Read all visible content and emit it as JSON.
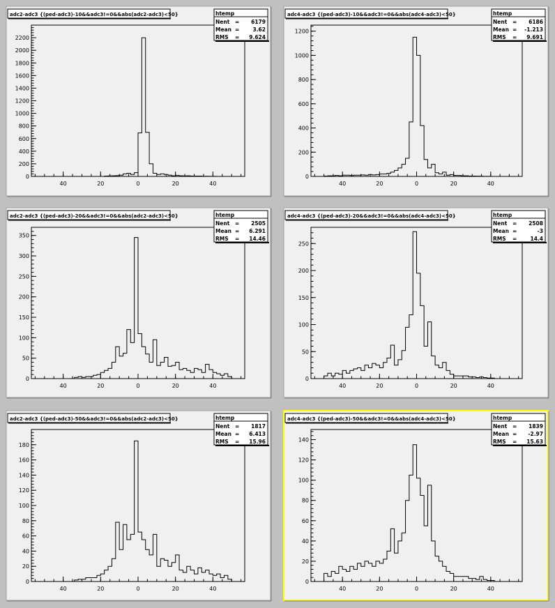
{
  "highlight_color": "#ffff00",
  "chart_data": [
    {
      "type": "histogram",
      "title": "adc2-adc3 {(ped-adc3)-10&&adc3!=0&&abs(adc2-adc3)<50}",
      "stats": {
        "header": "htemp",
        "entries_label": "Nent",
        "entries": "6179",
        "mean_label": "Mean",
        "mean": "3.62",
        "rms_label": "RMS",
        "rms": "9.624"
      },
      "xlim": [
        -57,
        57
      ],
      "ylim": [
        0,
        2400
      ],
      "xticks": [
        -40,
        -20,
        0,
        20,
        40
      ],
      "xtick_labels": [
        "40",
        "20",
        "0",
        "20",
        "40"
      ],
      "yticks": [
        0,
        200,
        400,
        600,
        800,
        1000,
        1200,
        1400,
        1600,
        1800,
        2000,
        2200
      ],
      "bin_start": -50,
      "bin_width": 2,
      "values": [
        0,
        0,
        0,
        0,
        0,
        0,
        0,
        0,
        0,
        0,
        0,
        0,
        0,
        0,
        0,
        0,
        5,
        8,
        10,
        12,
        20,
        40,
        50,
        30,
        60,
        690,
        2200,
        700,
        200,
        50,
        30,
        40,
        30,
        20,
        10,
        15,
        10,
        8,
        10,
        5,
        5,
        5,
        3,
        3,
        2,
        2,
        0,
        0,
        0,
        0
      ]
    },
    {
      "type": "histogram",
      "title": "adc4-adc3 {(ped-adc3)-10&&adc3!=0&&abs(adc4-adc3)<50}",
      "stats": {
        "header": "htemp",
        "entries_label": "Nent",
        "entries": "6186",
        "mean_label": "Mean",
        "mean": "-1.213",
        "rms_label": "RMS",
        "rms": "9.691"
      },
      "xlim": [
        -57,
        57
      ],
      "ylim": [
        0,
        1250
      ],
      "xticks": [
        -40,
        -20,
        0,
        20,
        40
      ],
      "xtick_labels": [
        "40",
        "20",
        "0",
        "20",
        "40"
      ],
      "yticks": [
        0,
        200,
        400,
        600,
        800,
        1000,
        1200
      ],
      "bin_start": -50,
      "bin_width": 2,
      "values": [
        3,
        5,
        5,
        8,
        5,
        10,
        10,
        8,
        10,
        10,
        12,
        10,
        15,
        12,
        15,
        20,
        20,
        25,
        35,
        50,
        70,
        100,
        150,
        450,
        1150,
        1000,
        420,
        140,
        70,
        100,
        30,
        20,
        35,
        10,
        15,
        8,
        8,
        5,
        5,
        3,
        3,
        2,
        2,
        1,
        1,
        0,
        0,
        0,
        0,
        0
      ]
    },
    {
      "type": "histogram",
      "title": "adc2-adc3 {(ped-adc3)-20&&adc3!=0&&abs(adc2-adc3)<50}",
      "stats": {
        "header": "htemp",
        "entries_label": "Nent",
        "entries": "2505",
        "mean_label": "Mean",
        "mean": "6.291",
        "rms_label": "RMS",
        "rms": "14.46"
      },
      "xlim": [
        -57,
        57
      ],
      "ylim": [
        0,
        370
      ],
      "xticks": [
        -40,
        -20,
        0,
        20,
        40
      ],
      "xtick_labels": [
        "40",
        "20",
        "0",
        "20",
        "40"
      ],
      "yticks": [
        0,
        50,
        100,
        150,
        200,
        250,
        300,
        350
      ],
      "bin_start": -50,
      "bin_width": 2,
      "values": [
        0,
        0,
        0,
        0,
        0,
        0,
        0,
        0,
        3,
        5,
        3,
        5,
        5,
        8,
        10,
        15,
        20,
        25,
        40,
        78,
        55,
        62,
        120,
        88,
        345,
        110,
        78,
        60,
        40,
        95,
        32,
        40,
        52,
        30,
        32,
        40,
        22,
        25,
        20,
        15,
        25,
        22,
        15,
        35,
        22,
        15,
        12,
        8,
        12,
        5
      ]
    },
    {
      "type": "histogram",
      "title": "adc4-adc3 {(ped-adc3)-20&&adc3!=0&&abs(adc4-adc3)<50}",
      "stats": {
        "header": "htemp",
        "entries_label": "Nent",
        "entries": "2508",
        "mean_label": "Mean",
        "mean": "-3",
        "rms_label": "RMS",
        "rms": "14.4"
      },
      "xlim": [
        -57,
        57
      ],
      "ylim": [
        0,
        280
      ],
      "xticks": [
        -40,
        -20,
        0,
        20,
        40
      ],
      "xtick_labels": [
        "40",
        "20",
        "0",
        "20",
        "40"
      ],
      "yticks": [
        0,
        50,
        100,
        150,
        200,
        250
      ],
      "bin_start": -50,
      "bin_width": 2,
      "values": [
        5,
        10,
        5,
        10,
        8,
        15,
        10,
        15,
        18,
        20,
        15,
        25,
        20,
        28,
        25,
        20,
        30,
        38,
        62,
        25,
        35,
        52,
        95,
        118,
        272,
        195,
        135,
        60,
        105,
        42,
        25,
        20,
        30,
        15,
        8,
        5,
        5,
        5,
        5,
        3,
        3,
        2,
        3,
        2,
        1,
        1,
        0,
        0,
        0,
        0
      ]
    },
    {
      "type": "histogram",
      "title": "adc2-adc3 {(ped-adc3)-50&&adc3!=0&&abs(adc2-adc3)<50}",
      "stats": {
        "header": "htemp",
        "entries_label": "Nent",
        "entries": "1817",
        "mean_label": "Mean",
        "mean": "6.413",
        "rms_label": "RMS",
        "rms": "15.96"
      },
      "xlim": [
        -57,
        57
      ],
      "ylim": [
        0,
        200
      ],
      "xticks": [
        -40,
        -20,
        0,
        20,
        40
      ],
      "xtick_labels": [
        "40",
        "20",
        "0",
        "20",
        "40"
      ],
      "yticks": [
        0,
        20,
        40,
        60,
        80,
        100,
        120,
        140,
        160,
        180
      ],
      "bin_start": -50,
      "bin_width": 2,
      "values": [
        0,
        0,
        0,
        0,
        0,
        0,
        0,
        0,
        2,
        3,
        3,
        5,
        5,
        5,
        8,
        10,
        15,
        20,
        30,
        78,
        42,
        75,
        55,
        62,
        185,
        65,
        55,
        42,
        35,
        62,
        20,
        30,
        28,
        20,
        25,
        35,
        15,
        12,
        20,
        15,
        10,
        18,
        12,
        15,
        10,
        8,
        10,
        5,
        8,
        3
      ]
    },
    {
      "type": "histogram",
      "title": "adc4-adc3 {(ped-adc3)-50&&adc3!=0&&abs(adc4-adc3)<50}",
      "stats": {
        "header": "htemp",
        "entries_label": "Nent",
        "entries": "1839",
        "mean_label": "Mean",
        "mean": "-2.97",
        "rms_label": "RMS",
        "rms": "15.63"
      },
      "xlim": [
        -57,
        57
      ],
      "ylim": [
        0,
        150
      ],
      "xticks": [
        -40,
        -20,
        0,
        20,
        40
      ],
      "xtick_labels": [
        "40",
        "20",
        "0",
        "20",
        "40"
      ],
      "yticks": [
        0,
        20,
        40,
        60,
        80,
        100,
        120,
        140
      ],
      "bin_start": -50,
      "bin_width": 2,
      "values": [
        8,
        5,
        10,
        8,
        15,
        12,
        10,
        15,
        12,
        18,
        15,
        20,
        18,
        15,
        20,
        18,
        22,
        30,
        52,
        28,
        40,
        48,
        80,
        105,
        135,
        102,
        85,
        55,
        95,
        40,
        25,
        20,
        15,
        10,
        8,
        5,
        5,
        5,
        5,
        3,
        3,
        2,
        5,
        2,
        1,
        1,
        0,
        0,
        0,
        0
      ]
    }
  ]
}
